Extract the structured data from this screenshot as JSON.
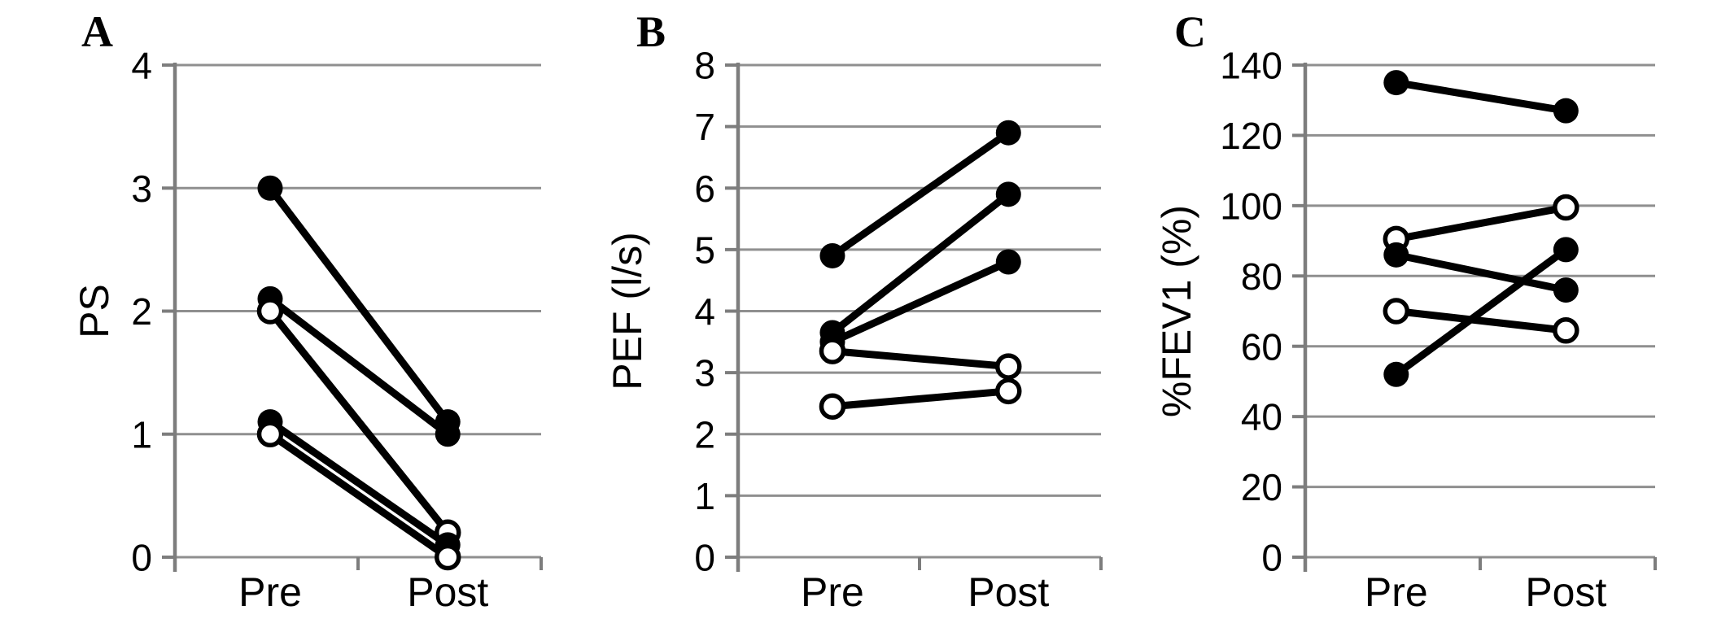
{
  "figure": {
    "background": "#ffffff",
    "line_color": "#000000",
    "axis_color": "#7d7d7d",
    "gridline_color": "#8f8f8f",
    "open_marker_fill": "#ffffff",
    "panels": [
      "A",
      "B",
      "C"
    ]
  },
  "chart_data": [
    {
      "type": "line",
      "panel_label": "A",
      "title": "",
      "xlabel": "",
      "ylabel": "PS",
      "categories": [
        "Pre",
        "Post"
      ],
      "ylim": [
        0,
        4
      ],
      "yticks": [
        0,
        1,
        2,
        3,
        4
      ],
      "grid": true,
      "legend_position": "none",
      "series": [
        {
          "name": "filled-subject-1",
          "marker": "filled",
          "values": [
            3.0,
            1.1
          ]
        },
        {
          "name": "filled-subject-2",
          "marker": "filled",
          "values": [
            2.1,
            1.0
          ]
        },
        {
          "name": "open-subject-1",
          "marker": "open",
          "values": [
            2.0,
            0.2
          ]
        },
        {
          "name": "filled-subject-3",
          "marker": "filled",
          "values": [
            1.1,
            0.1
          ]
        },
        {
          "name": "open-subject-2",
          "marker": "open",
          "values": [
            1.0,
            0.0
          ]
        }
      ]
    },
    {
      "type": "line",
      "panel_label": "B",
      "title": "",
      "xlabel": "",
      "ylabel": "PEF (l/s)",
      "categories": [
        "Pre",
        "Post"
      ],
      "ylim": [
        0,
        8
      ],
      "yticks": [
        0,
        1,
        2,
        3,
        4,
        5,
        6,
        7,
        8
      ],
      "grid": true,
      "legend_position": "none",
      "series": [
        {
          "name": "filled-subject-1",
          "marker": "filled",
          "values": [
            4.9,
            6.9
          ]
        },
        {
          "name": "filled-subject-2",
          "marker": "filled",
          "values": [
            3.65,
            5.9
          ]
        },
        {
          "name": "filled-subject-3",
          "marker": "filled",
          "values": [
            3.5,
            4.8
          ]
        },
        {
          "name": "open-subject-1",
          "marker": "open",
          "values": [
            3.35,
            3.1
          ]
        },
        {
          "name": "open-subject-2",
          "marker": "open",
          "values": [
            2.45,
            2.7
          ]
        }
      ]
    },
    {
      "type": "line",
      "panel_label": "C",
      "title": "",
      "xlabel": "",
      "ylabel": "%FEV1 (%)",
      "categories": [
        "Pre",
        "Post"
      ],
      "ylim": [
        0,
        140
      ],
      "yticks": [
        0,
        20,
        40,
        60,
        80,
        100,
        120,
        140
      ],
      "grid": true,
      "legend_position": "none",
      "series": [
        {
          "name": "filled-subject-1",
          "marker": "filled",
          "values": [
            135,
            127
          ]
        },
        {
          "name": "open-subject-1",
          "marker": "open",
          "values": [
            90.5,
            99.5
          ]
        },
        {
          "name": "filled-subject-2",
          "marker": "filled",
          "values": [
            86,
            76
          ]
        },
        {
          "name": "open-subject-2",
          "marker": "open",
          "values": [
            70,
            64.5
          ]
        },
        {
          "name": "filled-subject-3",
          "marker": "filled",
          "values": [
            52,
            87.5
          ]
        }
      ]
    }
  ]
}
